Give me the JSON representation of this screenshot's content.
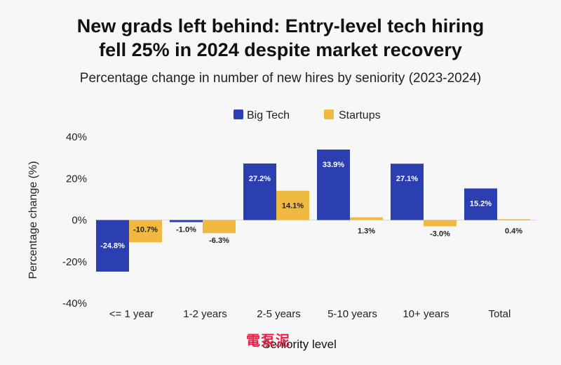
{
  "title_line1": "New grads left behind: Entry-level tech hiring",
  "title_line2": "fell 25% in 2024 despite market recovery",
  "subtitle": "Percentage change in number of new hires by seniority (2023-2024)",
  "watermark": "電泵泥",
  "chart_data": {
    "type": "bar",
    "title": "New grads left behind: Entry-level tech hiring fell 25% in 2024 despite market recovery",
    "subtitle": "Percentage change in number of new hires by seniority (2023-2024)",
    "xlabel": "Seniority level",
    "ylabel": "Percentage change (%)",
    "ylim": [
      -40,
      40
    ],
    "yticks": [
      40,
      20,
      0,
      -20,
      -40
    ],
    "ytick_labels": [
      "40%",
      "20%",
      "0%",
      "-20%",
      "-40%"
    ],
    "categories": [
      "<= 1 year",
      "1-2 years",
      "2-5 years",
      "5-10 years",
      "10+ years",
      "Total"
    ],
    "series": [
      {
        "name": "Big Tech",
        "color": "#2b3fb0",
        "values": [
          -24.8,
          -1.0,
          27.2,
          33.9,
          27.1,
          15.2
        ],
        "labels": [
          "-24.8%",
          "-1.0%",
          "27.2%",
          "33.9%",
          "27.1%",
          "15.2%"
        ]
      },
      {
        "name": "Startups",
        "color": "#f0b942",
        "values": [
          -10.7,
          -6.3,
          14.1,
          1.3,
          -3.0,
          0.4
        ],
        "labels": [
          "-10.7%",
          "-6.3%",
          "14.1%",
          "1.3%",
          "-3.0%",
          "0.4%"
        ]
      }
    ],
    "legend_position": "top-center",
    "grid": false
  }
}
